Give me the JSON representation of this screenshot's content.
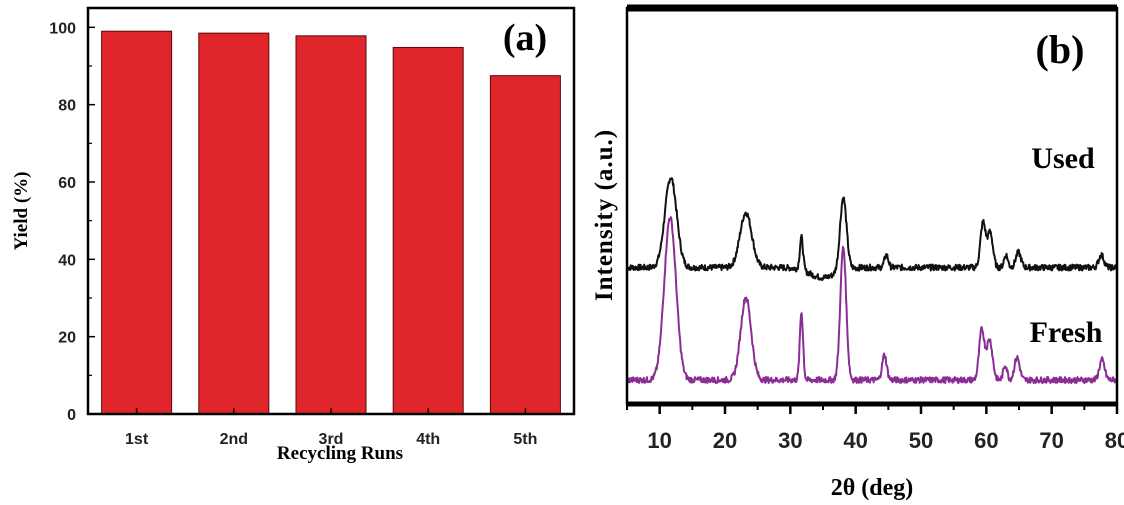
{
  "chart_data": [
    {
      "panel_label": "(a)",
      "type": "bar",
      "categories": [
        "1st",
        "2nd",
        "3rd",
        "4th",
        "5th"
      ],
      "values": [
        99,
        98.5,
        97.8,
        94.8,
        87.5
      ],
      "xlabel": "Recycling Runs",
      "ylabel": "Yield (%)",
      "ylim": [
        0,
        105
      ],
      "yticks": [
        "0",
        "20",
        "40",
        "60",
        "80",
        "100"
      ],
      "bar_color": "#e0262a",
      "grid": false
    },
    {
      "panel_label": "(b)",
      "type": "line",
      "xlabel": "2θ (deg)",
      "ylabel": "Intensity (a.u.)",
      "xlim": [
        5,
        80
      ],
      "xticks": [
        "10",
        "20",
        "30",
        "40",
        "50",
        "60",
        "70",
        "80"
      ],
      "y_axis_labels_shown": false,
      "grid": false,
      "series": [
        {
          "name": "Used",
          "color": "#111111",
          "baseline": 0.45,
          "noise": 0.012,
          "peaks": [
            {
              "x": 11.7,
              "height": 0.36,
              "width": 0.9
            },
            {
              "x": 23.2,
              "height": 0.22,
              "width": 0.9
            },
            {
              "x": 31.7,
              "height": 0.13,
              "width": 0.25
            },
            {
              "x": 38.1,
              "height": 0.29,
              "width": 0.5
            },
            {
              "x": 44.7,
              "height": 0.05,
              "width": 0.3
            },
            {
              "x": 59.5,
              "height": 0.18,
              "width": 0.4
            },
            {
              "x": 60.6,
              "height": 0.14,
              "width": 0.4
            },
            {
              "x": 63.0,
              "height": 0.05,
              "width": 0.3
            },
            {
              "x": 64.9,
              "height": 0.06,
              "width": 0.4
            },
            {
              "x": 77.6,
              "height": 0.05,
              "width": 0.4
            }
          ],
          "dips": [
            {
              "x": 35.0,
              "depth": 0.04,
              "width": 2.0
            }
          ]
        },
        {
          "name": "Fresh",
          "color": "#8a2d94",
          "baseline": 0.0,
          "noise": 0.012,
          "peaks": [
            {
              "x": 11.6,
              "height": 0.65,
              "width": 0.9
            },
            {
              "x": 23.2,
              "height": 0.33,
              "width": 0.8
            },
            {
              "x": 31.7,
              "height": 0.27,
              "width": 0.25
            },
            {
              "x": 38.1,
              "height": 0.53,
              "width": 0.45
            },
            {
              "x": 44.4,
              "height": 0.1,
              "width": 0.35
            },
            {
              "x": 59.3,
              "height": 0.2,
              "width": 0.4
            },
            {
              "x": 60.5,
              "height": 0.16,
              "width": 0.45
            },
            {
              "x": 62.9,
              "height": 0.06,
              "width": 0.3
            },
            {
              "x": 64.7,
              "height": 0.09,
              "width": 0.4
            },
            {
              "x": 77.7,
              "height": 0.08,
              "width": 0.4
            }
          ],
          "dips": []
        }
      ]
    }
  ]
}
